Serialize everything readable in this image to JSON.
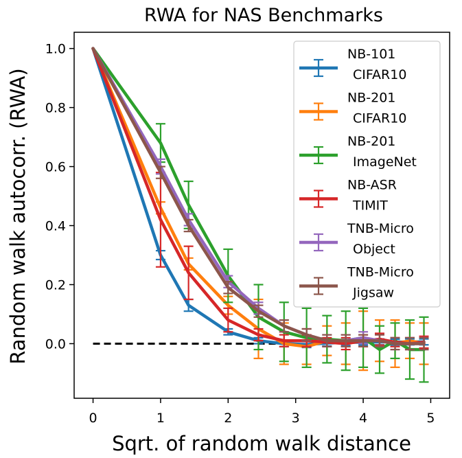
{
  "chart_data": {
    "type": "line",
    "title": "RWA for NAS Benchmarks",
    "xlabel": "Sqrt. of random walk distance",
    "ylabel": "Random walk autocorr. (RWA)",
    "xlim": [
      -0.28,
      5.28
    ],
    "ylim": [
      -0.185,
      1.055
    ],
    "xticks": [
      0,
      1,
      2,
      3,
      4,
      5
    ],
    "yticks": [
      0.0,
      0.2,
      0.4,
      0.6,
      0.8,
      1.0
    ],
    "xtick_labels": [
      "0",
      "1",
      "2",
      "3",
      "4",
      "5"
    ],
    "ytick_labels": [
      "0.0",
      "0.2",
      "0.4",
      "0.6",
      "0.8",
      "1.0"
    ],
    "grid": false,
    "legend_position": "upper right",
    "reference_line": {
      "y": 0.0,
      "style": "dashed",
      "color": "#000000"
    },
    "x": [
      0,
      1,
      1.414,
      2,
      2.449,
      2.828,
      3.162,
      3.464,
      3.742,
      4,
      4.243,
      4.472,
      4.69,
      4.899
    ],
    "series": [
      {
        "line1": "NB-101",
        "line2": "CIFAR10",
        "color": "#1f77b4",
        "y": [
          1.0,
          0.3,
          0.13,
          0.04,
          0.01,
          0.0,
          -0.003,
          0.002,
          0.004,
          0.005,
          0.006,
          0.005,
          0.006,
          0.006
        ],
        "err": [
          0,
          0.015,
          0.02,
          0.01,
          0.01,
          0.01,
          0.01,
          0.01,
          0.01,
          0.01,
          0.01,
          0.01,
          0.01,
          0.01
        ]
      },
      {
        "line1": "NB-201",
        "line2": "CIFAR10",
        "color": "#ff7f0e",
        "y": [
          1.0,
          0.46,
          0.27,
          0.13,
          0.05,
          0.0,
          -0.01,
          0.01,
          0.0,
          0.01,
          0.01,
          0.0,
          0.01,
          0.0
        ],
        "err": [
          0,
          0.02,
          0.02,
          0.03,
          0.1,
          0.07,
          0.06,
          0.05,
          0.07,
          0.1,
          0.07,
          0.08,
          0.06,
          0.07
        ]
      },
      {
        "line1": "NB-201",
        "line2": "ImageNet",
        "color": "#2ca02c",
        "y": [
          1.0,
          0.68,
          0.47,
          0.23,
          0.09,
          0.04,
          0.02,
          0.015,
          0.01,
          0.02,
          -0.02,
          0.01,
          -0.02,
          -0.02
        ],
        "err": [
          0,
          0.065,
          0.08,
          0.09,
          0.11,
          0.1,
          0.1,
          0.08,
          0.1,
          0.1,
          0.08,
          0.06,
          0.1,
          0.11
        ]
      },
      {
        "line1": "NB-ASR",
        "line2": "TIMIT",
        "color": "#d62728",
        "y": [
          1.0,
          0.42,
          0.24,
          0.08,
          0.03,
          0.01,
          0.01,
          0.005,
          0.0,
          0.01,
          0.015,
          0.005,
          0.0,
          0.005
        ],
        "err": [
          0,
          0.16,
          0.09,
          0.04,
          0.02,
          0.02,
          0.02,
          0.015,
          0.02,
          0.02,
          0.02,
          0.015,
          0.02,
          0.02
        ]
      },
      {
        "line1": "TNB-Micro",
        "line2": "Object",
        "color": "#9467bd",
        "y": [
          1.0,
          0.6,
          0.42,
          0.21,
          0.12,
          0.06,
          0.03,
          0.01,
          0.01,
          0.02,
          0.01,
          0.0,
          0.0,
          0.0
        ],
        "err": [
          0,
          0.025,
          0.02,
          0.02,
          0.02,
          0.02,
          0.02,
          0.02,
          0.02,
          0.02,
          0.02,
          0.02,
          0.02,
          0.02
        ]
      },
      {
        "line1": "TNB-Micro",
        "line2": "Jigsaw",
        "color": "#8c564b",
        "y": [
          1.0,
          0.58,
          0.4,
          0.19,
          0.11,
          0.06,
          0.03,
          0.01,
          0.01,
          0.01,
          0.01,
          0.0,
          0.0,
          0.0
        ],
        "err": [
          0,
          0.02,
          0.02,
          0.02,
          0.02,
          0.02,
          0.02,
          0.02,
          0.02,
          0.02,
          0.02,
          0.02,
          0.02,
          0.02
        ]
      }
    ]
  }
}
